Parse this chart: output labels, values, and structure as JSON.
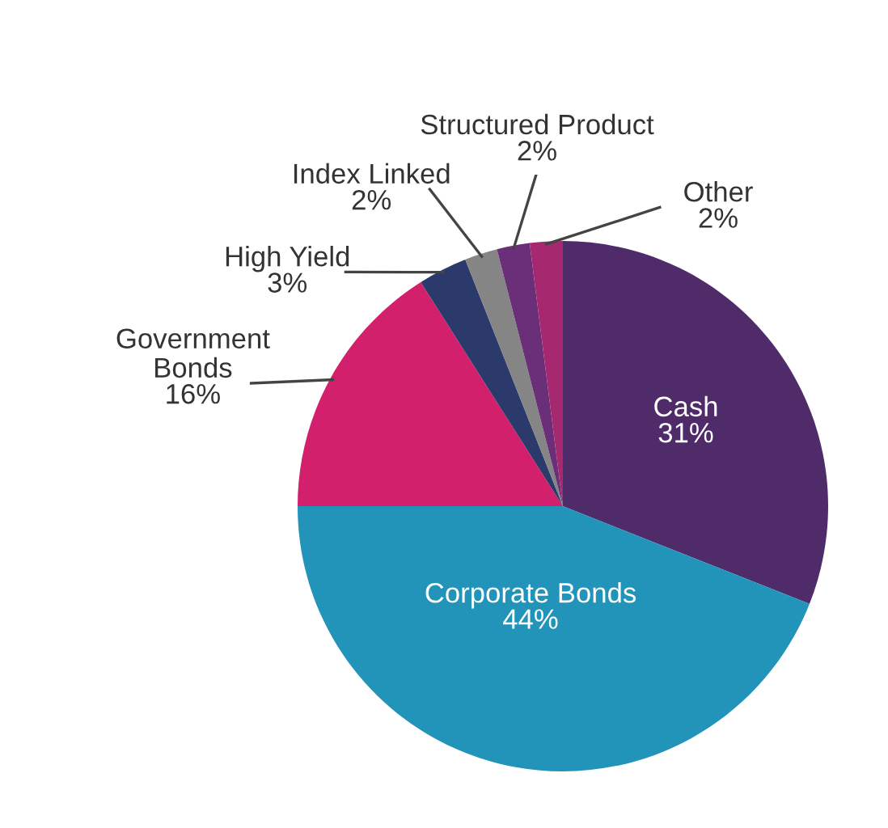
{
  "chart_data": {
    "type": "pie",
    "categories": [
      "Cash",
      "Corporate Bonds",
      "Government\nBonds",
      "High Yield",
      "Index Linked",
      "Structured Product",
      "Other"
    ],
    "values": [
      31,
      44,
      16,
      3,
      2,
      2,
      2
    ],
    "colors": [
      "#4f2b69",
      "#2394b9",
      "#d2206c",
      "#2b3a6b",
      "#858585",
      "#6a2f78",
      "#a6296f"
    ],
    "value_labels": [
      "31%",
      "44%",
      "16%",
      "3%",
      "2%",
      "2%",
      "2%"
    ],
    "legend": false
  }
}
